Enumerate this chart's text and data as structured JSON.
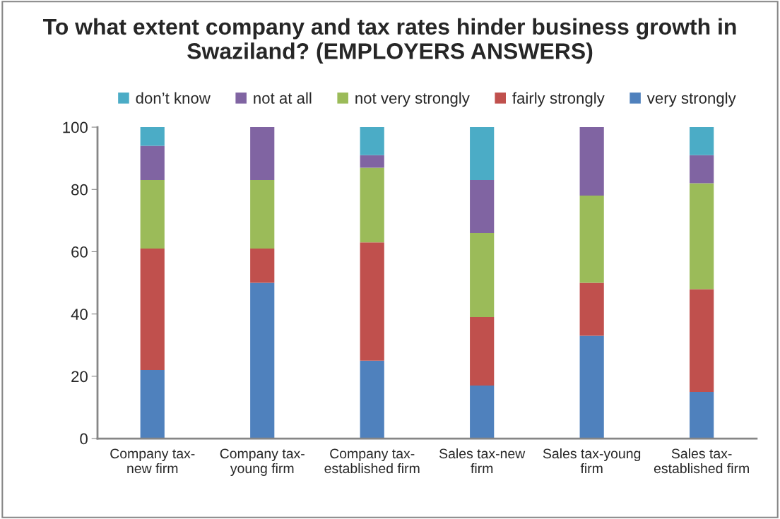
{
  "chart_data": {
    "type": "bar",
    "title": "To what extent company and tax rates hinder business growth in Swaziland? (EMPLOYERS ANSWERS)",
    "categories": [
      "Company tax-\nnew firm",
      "Company tax-\nyoung firm",
      "Company tax-\nestablished firm",
      "Sales tax-new\nfirm",
      "Sales tax-young\nfirm",
      "Sales tax-\nestablished firm"
    ],
    "stacked": true,
    "series": [
      {
        "name": "very strongly",
        "color": "#4f81bd",
        "values": [
          22,
          50,
          25,
          17,
          33,
          15
        ]
      },
      {
        "name": "fairly strongly",
        "color": "#c0504d",
        "values": [
          39,
          11,
          38,
          22,
          17,
          33
        ]
      },
      {
        "name": "not very strongly",
        "color": "#9bbb59",
        "values": [
          22,
          22,
          24,
          27,
          28,
          34
        ]
      },
      {
        "name": "not at all",
        "color": "#8064a2",
        "values": [
          11,
          17,
          4,
          17,
          22,
          9
        ]
      },
      {
        "name": "don’t know",
        "color": "#4bacc6",
        "values": [
          6,
          null,
          9,
          17,
          null,
          9
        ]
      }
    ],
    "ylim": [
      0,
      100
    ],
    "yticks": [
      0,
      20,
      40,
      60,
      80,
      100
    ],
    "grid": false,
    "legend": "top"
  }
}
